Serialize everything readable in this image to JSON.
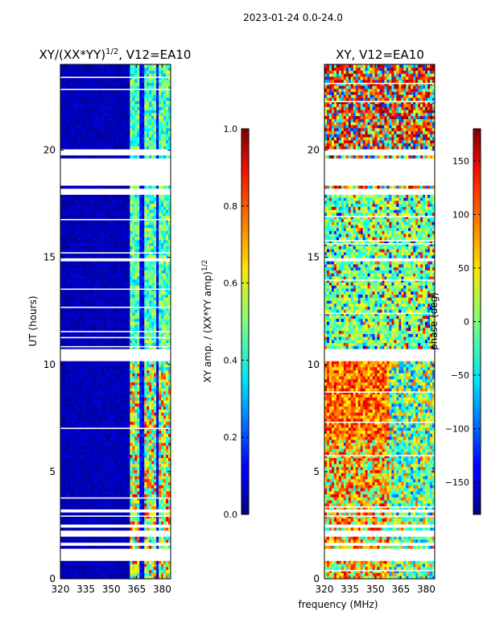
{
  "figure_title": "2023-01-24 0.0-24.0",
  "x_axis_label": "frequency (MHz)",
  "chart_data": [
    {
      "type": "heatmap",
      "title_main": "XY/(XX*YY)",
      "title_exp": "1/2",
      "title_suffix": ", V12=EA10",
      "xlabel": "frequency (MHz)",
      "ylabel": "UT (hours)",
      "xlim": [
        320,
        385
      ],
      "ylim": [
        0,
        24
      ],
      "xticks": [
        320,
        335,
        350,
        365,
        380
      ],
      "yticks": [
        0,
        5,
        10,
        15,
        20
      ],
      "colorbar": {
        "label_main": "XY amp. / (XX*YY amp)",
        "label_exp": "1/2",
        "range": [
          0.0,
          1.0
        ],
        "ticks": [
          "0.0",
          "0.2",
          "0.4",
          "0.6",
          "0.8",
          "1.0"
        ],
        "tick_values": [
          0.0,
          0.2,
          0.4,
          0.6,
          0.8,
          1.0
        ],
        "colormap": "jet"
      }
    },
    {
      "type": "heatmap",
      "title": "XY, V12=EA10",
      "xlabel": "frequency (MHz)",
      "ylabel": "",
      "xlim": [
        320,
        385
      ],
      "ylim": [
        0,
        24
      ],
      "xticks": [
        320,
        335,
        350,
        365,
        380
      ],
      "yticks": [
        0,
        5,
        10,
        15,
        20
      ],
      "colorbar": {
        "label": "phase (deg)",
        "range": [
          -180,
          180
        ],
        "ticks": [
          "150",
          "100",
          "50",
          "0",
          "−50",
          "−100",
          "−150"
        ],
        "tick_values": [
          150,
          100,
          50,
          0,
          -50,
          -100,
          -150
        ],
        "colormap": "jet"
      }
    }
  ],
  "flagged_ut_ranges": [
    [
      0.9,
      1.4
    ],
    [
      1.55,
      1.75
    ],
    [
      1.95,
      2.25
    ],
    [
      2.45,
      2.6
    ],
    [
      3.1,
      3.2
    ],
    [
      10.2,
      10.7
    ],
    [
      14.85,
      15.0
    ],
    [
      17.9,
      18.2
    ],
    [
      18.4,
      19.6
    ],
    [
      19.8,
      20.0
    ]
  ],
  "colors": {
    "background": "#ffffff",
    "low_band": "#00007f",
    "flag": "#ffffff",
    "axis": "#000000"
  }
}
